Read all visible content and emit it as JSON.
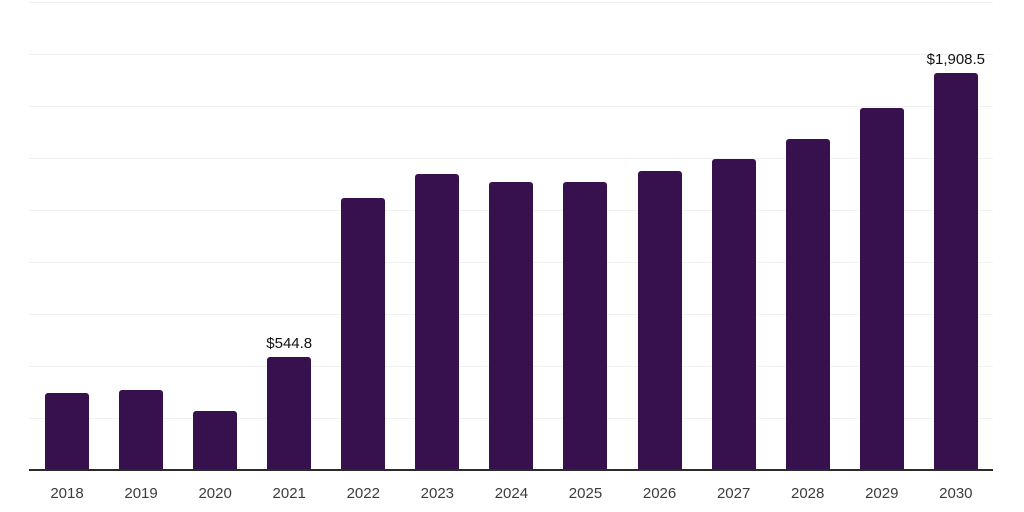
{
  "chart_data": {
    "type": "bar",
    "title": "",
    "xlabel": "",
    "ylabel": "",
    "categories": [
      "2018",
      "2019",
      "2020",
      "2021",
      "2022",
      "2023",
      "2024",
      "2025",
      "2026",
      "2027",
      "2028",
      "2029",
      "2030"
    ],
    "values": [
      370,
      385,
      285,
      544.8,
      1305,
      1420,
      1385,
      1385,
      1435,
      1495,
      1590,
      1740,
      1908.5
    ],
    "value_labels": [
      {
        "category": "2021",
        "text": "$544.8"
      },
      {
        "category": "2030",
        "text": "$1,908.5"
      }
    ],
    "ylim": [
      0,
      2250
    ],
    "y_gridline_step": 250,
    "y_axis_labels_visible": false,
    "grid": "horizontal",
    "legend": false,
    "background": "#ffffff",
    "colors": {
      "bar": "#37114d",
      "gridline": "#f2f2f2",
      "axis_line": "#2b2b2b",
      "tick_label": "#3c3c3c",
      "value_label": "#111111"
    }
  }
}
